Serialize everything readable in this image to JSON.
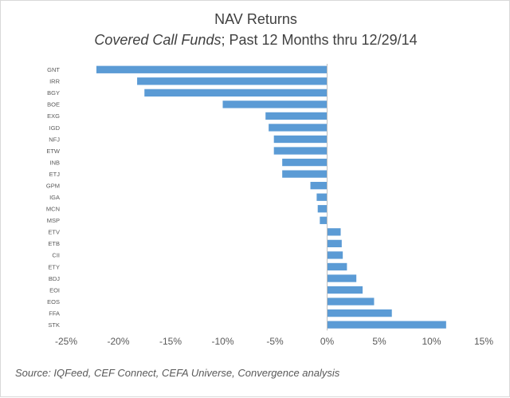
{
  "chart_data": {
    "type": "bar",
    "orientation": "horizontal",
    "title": "NAV Returns",
    "subtitle_italic": "Covered Call Funds",
    "subtitle_rest": "; Past 12 Months thru 12/29/14",
    "categories": [
      "GNT",
      "IRR",
      "BGY",
      "BOE",
      "EXG",
      "IGD",
      "NFJ",
      "ETW",
      "INB",
      "ETJ",
      "GPM",
      "IGA",
      "MCN",
      "MSP",
      "ETV",
      "ETB",
      "CII",
      "ETY",
      "BDJ",
      "EOI",
      "EOS",
      "FFA",
      "STK"
    ],
    "values": [
      -22.1,
      -18.2,
      -17.5,
      -10.0,
      -5.9,
      -5.6,
      -5.1,
      -5.1,
      -4.3,
      -4.3,
      -1.6,
      -1.0,
      -0.9,
      -0.7,
      1.3,
      1.4,
      1.5,
      1.9,
      2.8,
      3.4,
      4.5,
      6.2,
      11.4
    ],
    "xlim": [
      -25,
      15
    ],
    "ticks": [
      -25,
      -20,
      -15,
      -10,
      -5,
      0,
      5,
      10,
      15
    ],
    "tick_labels": [
      "-25%",
      "-20%",
      "-15%",
      "-10%",
      "-5%",
      "0%",
      "5%",
      "10%",
      "15%"
    ],
    "grid": false,
    "bar_color": "#5B9BD5"
  },
  "source": "Source:  IQFeed, CEF Connect, CEFA Universe, Convergence analysis"
}
